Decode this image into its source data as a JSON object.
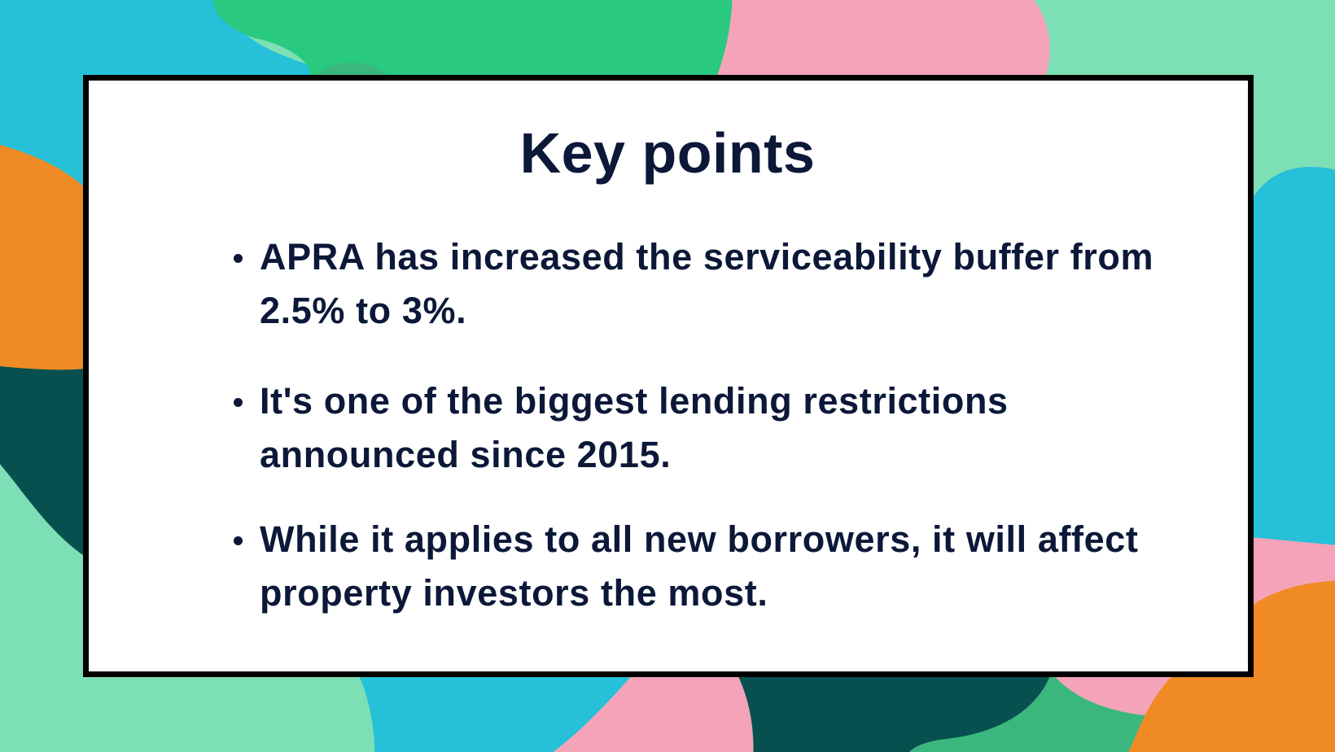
{
  "title": "Key points",
  "points": [
    "APRA has increased the serviceability buffer from 2.5% to 3%.",
    "It's one of the biggest lending restrictions announced since 2015.",
    "While it applies to all new borrowers, it will affect property investors the most."
  ],
  "colors": {
    "text": "#0B1838",
    "card": "#FFFFFF",
    "border": "#000000",
    "cyan": "#26C0D8",
    "green": "#29C97F",
    "pink": "#F5A3B8",
    "mint": "#7DDFB5",
    "orange": "#F08A24",
    "dark_teal": "#08504F",
    "mid_green": "#3BB77E"
  }
}
